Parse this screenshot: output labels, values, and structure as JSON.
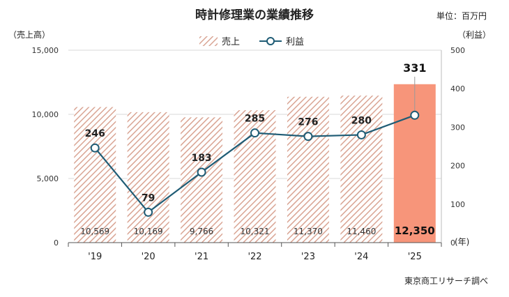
{
  "chart_data": {
    "type": "bar",
    "title": "時計修理業の業績推移",
    "unit_note": "単位：百万円",
    "y_left_label": "（売上高）",
    "y_right_label": "（利益）",
    "x_unit": "(年)",
    "source": "東京商工リサーチ調べ",
    "categories": [
      "'19",
      "'20",
      "'21",
      "'22",
      "'23",
      "'24",
      "'25"
    ],
    "series": [
      {
        "name": "売上",
        "type": "bar",
        "axis": "left",
        "values": [
          10569,
          10169,
          9766,
          10321,
          11370,
          11460,
          12350
        ],
        "labels": [
          "10,569",
          "10,169",
          "9,766",
          "10,321",
          "11,370",
          "11,460",
          "12,350"
        ]
      },
      {
        "name": "利益",
        "type": "line",
        "axis": "right",
        "values": [
          246,
          79,
          183,
          285,
          276,
          280,
          331
        ],
        "labels": [
          "246",
          "79",
          "183",
          "285",
          "276",
          "280",
          "331"
        ]
      }
    ],
    "y_left_ticks": [
      "0",
      "5,000",
      "10,000",
      "15,000"
    ],
    "y_left_lim": [
      0,
      15000
    ],
    "y_right_ticks": [
      "0",
      "100",
      "200",
      "300",
      "400",
      "500"
    ],
    "y_right_lim": [
      0,
      500
    ],
    "highlight_index": 6,
    "colors": {
      "bar_hatch": "#d9a493",
      "bar_hatch_bg": "#ffffff",
      "bar_highlight": "#f7957a",
      "line": "#1f5c75",
      "marker_fill": "#ffffff",
      "grid": "#d9d9d9"
    },
    "legend_position": "top-center",
    "grid": true
  }
}
